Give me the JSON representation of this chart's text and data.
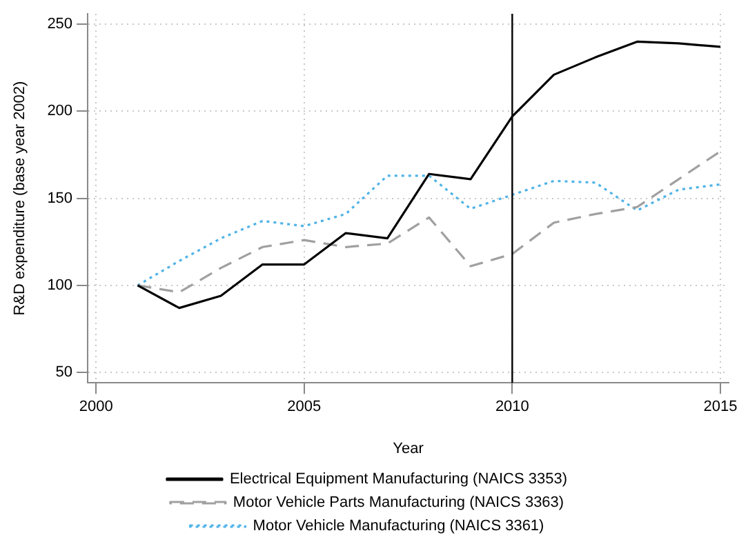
{
  "chart_data": {
    "type": "line",
    "xlabel": "Year",
    "ylabel": "R&D expenditure (base year 2002)",
    "x": [
      2001,
      2002,
      2003,
      2004,
      2005,
      2006,
      2007,
      2008,
      2009,
      2010,
      2011,
      2012,
      2013,
      2014,
      2015
    ],
    "series": [
      {
        "name": "Electrical Equipment Manufacturing (NAICS 3353)",
        "color": "#000000",
        "line_style": "solid",
        "values": [
          100,
          87,
          94,
          112,
          112,
          130,
          127,
          164,
          161,
          197,
          221,
          231,
          240,
          239,
          237
        ]
      },
      {
        "name": "Motor Vehicle Parts Manufacturing (NAICS 3363)",
        "color": "#a0a0a0",
        "line_style": "dashed",
        "values": [
          100,
          96,
          110,
          122,
          126,
          122,
          124,
          139,
          111,
          118,
          136,
          141,
          145,
          161,
          177
        ]
      },
      {
        "name": "Motor Vehicle Manufacturing (NAICS 3361)",
        "color": "#4fb3e8",
        "line_style": "dotted",
        "values": [
          100,
          114,
          127,
          137,
          134,
          141,
          163,
          163,
          144,
          152,
          160,
          159,
          143,
          155,
          158
        ]
      }
    ],
    "xlim": [
      1999.8,
      2015.2
    ],
    "xticks": [
      2000,
      2005,
      2010,
      2015
    ],
    "ylim": [
      44,
      256
    ],
    "yticks": [
      50,
      100,
      150,
      200,
      250
    ],
    "ref_lines": [
      {
        "axis": "x",
        "value": 2010,
        "color": "#000000"
      }
    ],
    "grid": true,
    "legend": "bottom",
    "marker": "none"
  }
}
